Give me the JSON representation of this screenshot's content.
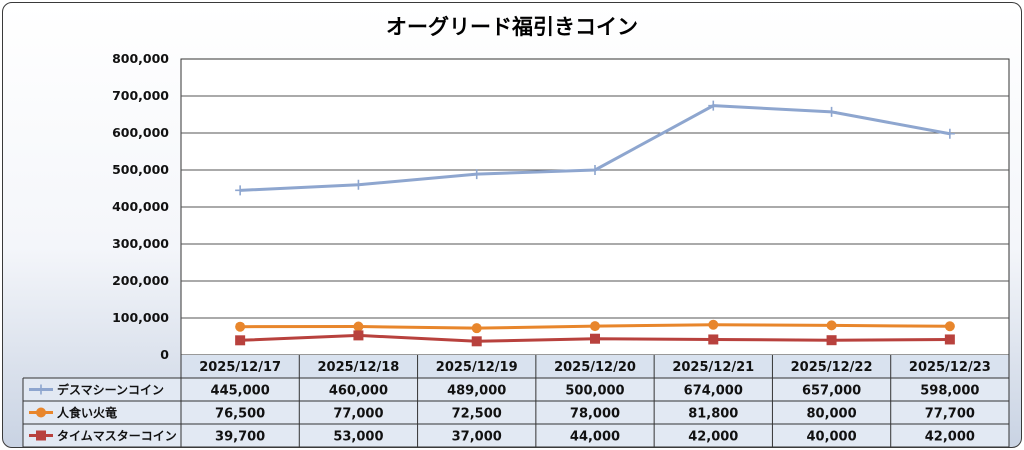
{
  "chart_data": {
    "type": "line",
    "title": "オーグリード福引きコイン",
    "categories": [
      "2025/12/17",
      "2025/12/18",
      "2025/12/19",
      "2025/12/20",
      "2025/12/21",
      "2025/12/22",
      "2025/12/23"
    ],
    "ylim": [
      0,
      800000
    ],
    "yticks": [
      0,
      100000,
      200000,
      300000,
      400000,
      500000,
      600000,
      700000,
      800000
    ],
    "ytick_labels": [
      "0",
      "100,000",
      "200,000",
      "300,000",
      "400,000",
      "500,000",
      "600,000",
      "700,000",
      "800,000"
    ],
    "grid": true,
    "legend": "data-table",
    "series": [
      {
        "name": "デスマシーンコイン",
        "values": [
          445000,
          460000,
          489000,
          500000,
          674000,
          657000,
          598000
        ],
        "labels": [
          "445,000",
          "460,000",
          "489,000",
          "500,000",
          "674,000",
          "657,000",
          "598,000"
        ],
        "color": "#8ea6cf",
        "marker": "plus"
      },
      {
        "name": "人食い火竜",
        "values": [
          76500,
          77000,
          72500,
          78000,
          81800,
          80000,
          77700
        ],
        "labels": [
          "76,500",
          "77,000",
          "72,500",
          "78,000",
          "81,800",
          "80,000",
          "77,700"
        ],
        "color": "#e8862c",
        "marker": "circle"
      },
      {
        "name": "タイムマスターコイン",
        "values": [
          39700,
          53000,
          37000,
          44000,
          42000,
          40000,
          42000
        ],
        "labels": [
          "39,700",
          "53,000",
          "37,000",
          "44,000",
          "42,000",
          "40,000",
          "42,000"
        ],
        "color": "#b8413d",
        "marker": "square"
      }
    ]
  }
}
